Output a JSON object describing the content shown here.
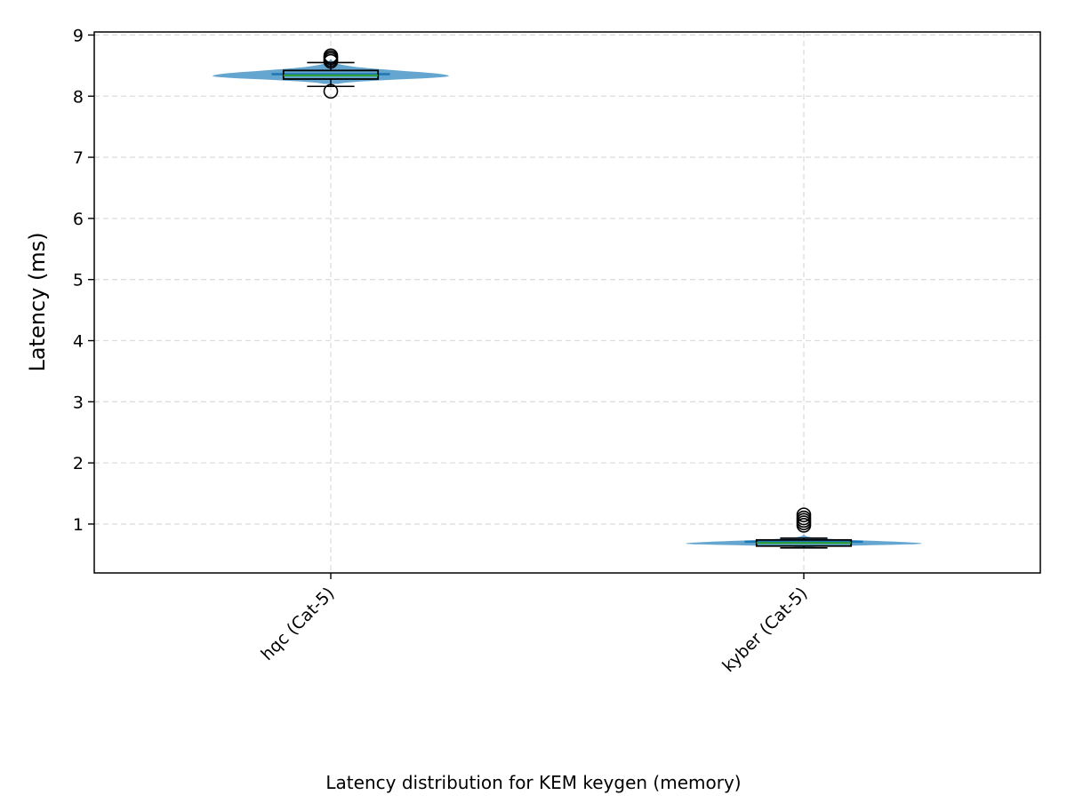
{
  "chart_data": {
    "type": "violin",
    "title": "",
    "xlabel": "Latency distribution for KEM keygen (memory)",
    "ylabel": "Latency (ms)",
    "ylim": [
      0.2,
      9.05
    ],
    "yticks": [
      1,
      2,
      3,
      4,
      5,
      6,
      7,
      8,
      9
    ],
    "grid": true,
    "categories": [
      "hqc (Cat-5)",
      "kyber (Cat-5)"
    ],
    "distributions": [
      {
        "category": "hqc (Cat-5)",
        "violin_min": 8.2,
        "violin_max": 8.6,
        "violin_mode": 8.33,
        "mean": 8.36,
        "median": 8.34,
        "q1": 8.28,
        "q3": 8.42,
        "whisker_low": 8.16,
        "whisker_high": 8.55,
        "outliers": [
          8.08,
          8.57,
          8.6,
          8.63,
          8.66
        ]
      },
      {
        "category": "kyber (Cat-5)",
        "violin_min": 0.62,
        "violin_max": 0.82,
        "violin_mode": 0.68,
        "mean": 0.71,
        "median": 0.69,
        "q1": 0.64,
        "q3": 0.74,
        "whisker_low": 0.61,
        "whisker_high": 0.77,
        "outliers": [
          0.98,
          1.02,
          1.06,
          1.1,
          1.15
        ]
      }
    ],
    "colors": {
      "violin": "#64a6cf",
      "mean_line": "#1f77b4",
      "median_line": "#2ca02c",
      "box_edge": "#000000",
      "grid": "#dddddd"
    }
  }
}
